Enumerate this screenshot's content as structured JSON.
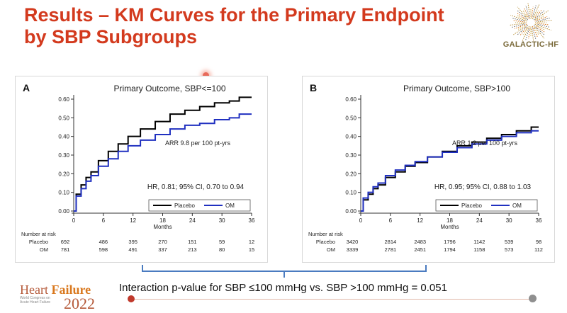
{
  "slide": {
    "title_line1": "Results – KM Curves for the Primary Endpoint",
    "title_line2": "by SBP Subgroups",
    "logo_text": "GALACTIC-HF",
    "footnote": "Interaction p-value for SBP ≤100 mmHg vs. SBP >100 mmHg = 0.051",
    "conference": {
      "word1": "Heart",
      "word2": "Failure",
      "small": "World Congress on Acute Heart Failure",
      "year": "2022"
    }
  },
  "chart_data": [
    {
      "type": "line",
      "panel_label": "A",
      "title": "Primary Outcome, SBP<=100",
      "xlabel": "Months",
      "ylabel": "",
      "xlim": [
        0,
        36
      ],
      "ylim": [
        0,
        0.6
      ],
      "xticks": [
        0,
        6,
        12,
        18,
        24,
        30,
        36
      ],
      "yticks": [
        "0.00",
        "0.10",
        "0.20",
        "0.30",
        "0.40",
        "0.50",
        "0.60"
      ],
      "series": [
        {
          "name": "Placebo",
          "color": "#000000",
          "x": [
            0,
            1,
            2,
            3,
            4,
            6,
            8,
            10,
            12,
            15,
            18,
            21,
            24,
            27,
            30,
            33,
            34,
            36
          ],
          "y": [
            0,
            0.09,
            0.14,
            0.18,
            0.21,
            0.27,
            0.32,
            0.36,
            0.4,
            0.44,
            0.48,
            0.52,
            0.54,
            0.56,
            0.58,
            0.59,
            0.61,
            0.61
          ]
        },
        {
          "name": "OM",
          "color": "#2030c0",
          "x": [
            0,
            1,
            2,
            3,
            4,
            6,
            8,
            10,
            12,
            15,
            18,
            21,
            24,
            27,
            30,
            33,
            34,
            36
          ],
          "y": [
            0,
            0.08,
            0.12,
            0.16,
            0.19,
            0.24,
            0.28,
            0.32,
            0.35,
            0.38,
            0.41,
            0.44,
            0.46,
            0.47,
            0.49,
            0.5,
            0.52,
            0.52
          ]
        }
      ],
      "annotations": [
        "ARR 9.8 per 100 pt-yrs",
        "HR, 0.81; 95% CI, 0.70 to 0.94"
      ],
      "legend_placement": "bottom-right",
      "at_risk": {
        "label": "Number at risk",
        "rows": [
          {
            "name": "Placebo",
            "values": [
              "692",
              "486",
              "395",
              "270",
              "151",
              "59",
              "12"
            ]
          },
          {
            "name": "OM",
            "values": [
              "781",
              "598",
              "491",
              "337",
              "213",
              "80",
              "15"
            ]
          }
        ]
      }
    },
    {
      "type": "line",
      "panel_label": "B",
      "title": "Primary Outcome, SBP>100",
      "xlabel": "Months",
      "ylabel": "",
      "xlim": [
        0,
        36
      ],
      "ylim": [
        0,
        0.6
      ],
      "xticks": [
        0,
        6,
        12,
        18,
        24,
        30,
        36
      ],
      "yticks": [
        "0.00",
        "0.10",
        "0.20",
        "0.30",
        "0.40",
        "0.50",
        "0.60"
      ],
      "series": [
        {
          "name": "Placebo",
          "color": "#000000",
          "x": [
            0,
            1,
            2,
            3,
            4,
            6,
            8,
            10,
            12,
            15,
            18,
            21,
            24,
            27,
            30,
            33,
            36
          ],
          "y": [
            0,
            0.06,
            0.09,
            0.12,
            0.14,
            0.18,
            0.21,
            0.24,
            0.26,
            0.29,
            0.32,
            0.35,
            0.37,
            0.39,
            0.41,
            0.43,
            0.45
          ]
        },
        {
          "name": "OM",
          "color": "#2030c0",
          "x": [
            0,
            1,
            2,
            3,
            4,
            6,
            8,
            10,
            12,
            15,
            18,
            21,
            24,
            27,
            30,
            33,
            36
          ],
          "y": [
            0,
            0.07,
            0.1,
            0.13,
            0.15,
            0.19,
            0.22,
            0.245,
            0.265,
            0.29,
            0.315,
            0.34,
            0.36,
            0.38,
            0.4,
            0.42,
            0.43
          ]
        }
      ],
      "annotations": [
        "ARR 1.2 per 100 pt-yrs",
        "HR, 0.95; 95% CI, 0.88 to 1.03"
      ],
      "legend_placement": "bottom-right",
      "at_risk": {
        "label": "Number at risk",
        "rows": [
          {
            "name": "Placebo",
            "values": [
              "3420",
              "2814",
              "2483",
              "1796",
              "1142",
              "539",
              "98"
            ]
          },
          {
            "name": "OM",
            "values": [
              "3339",
              "2781",
              "2451",
              "1794",
              "1158",
              "573",
              "112"
            ]
          }
        ]
      }
    }
  ]
}
